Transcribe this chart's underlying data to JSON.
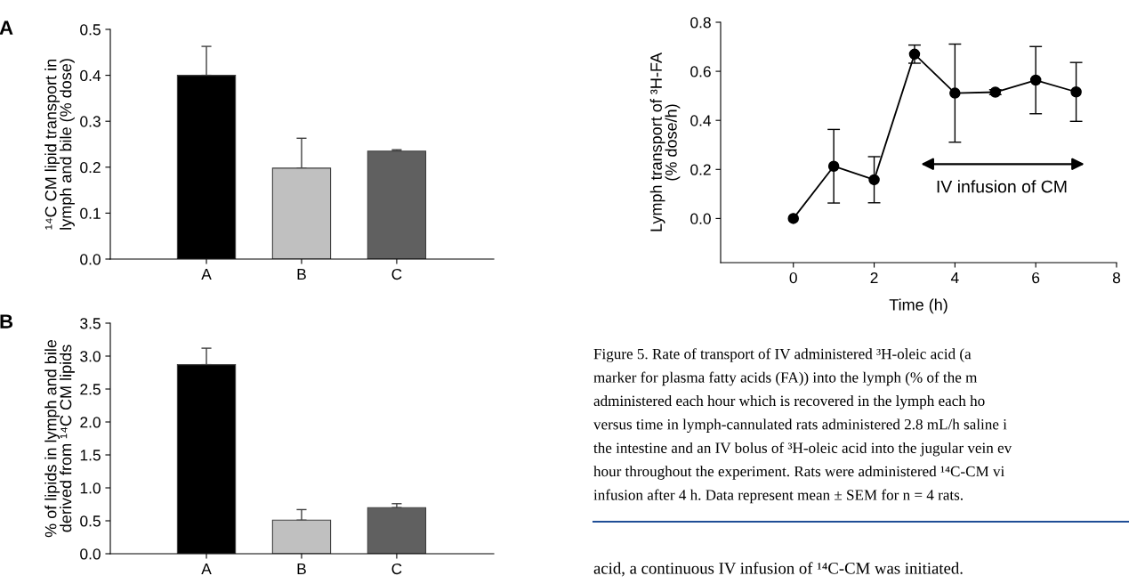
{
  "chart_data": [
    {
      "type": "bar",
      "title": "A",
      "ylabel": "¹⁴C CM lipid transport in\nlymph and bile (% dose)",
      "categories": [
        "A",
        "B",
        "C"
      ],
      "values": [
        0.4,
        0.198,
        0.235
      ],
      "errors": [
        0.063,
        0.065,
        0.003
      ],
      "colors": [
        "#000000",
        "#c0c0c0",
        "#606060"
      ],
      "ylim": [
        0,
        0.5
      ],
      "yticks": [
        {
          "value": 0,
          "label": "0.0"
        },
        0.1,
        0.2,
        0.3,
        0.4,
        0.5
      ],
      "grid": false,
      "legend": false
    },
    {
      "type": "bar",
      "title": "B",
      "ylabel": "% of lipids in lymph and bile\nderived from ¹⁴C CM lipids",
      "categories": [
        "A",
        "B",
        "C"
      ],
      "values": [
        2.87,
        0.51,
        0.7
      ],
      "errors": [
        0.25,
        0.16,
        0.06
      ],
      "colors": [
        "#000000",
        "#c0c0c0",
        "#606060"
      ],
      "ylim": [
        0,
        3.5
      ],
      "yticks": [
        {
          "value": 0,
          "label": "0.0"
        },
        0.5,
        {
          "value": 1,
          "label": "1.0"
        },
        1.5,
        {
          "value": 2,
          "label": "2.0"
        },
        2.5,
        {
          "value": 3,
          "label": "3.0"
        },
        3.5
      ],
      "grid": false,
      "legend": false
    },
    {
      "type": "line",
      "xlabel": "Time (h)",
      "ylabel": "Lymph transport of ³H-FA\n(% dose/h)",
      "x": [
        0,
        1,
        2,
        3,
        4,
        5,
        6,
        7
      ],
      "series": [
        {
          "color": "#000000",
          "values": [
            0,
            0.213,
            0.158,
            0.67,
            0.511,
            0.515,
            0.564,
            0.516
          ],
          "errors": [
            null,
            0.15,
            0.094,
            0.037,
            0.2,
            0.01,
            0.137,
            0.12
          ]
        }
      ],
      "marker": "circle",
      "line_style": "solid",
      "xlim": [
        -1.8,
        8
      ],
      "xticks": [
        0,
        2,
        4,
        6,
        8
      ],
      "ylim": [
        -0.18,
        0.8
      ],
      "yticks": [
        {
          "value": 0,
          "label": "0.0"
        },
        0.2,
        0.4,
        0.6,
        0.8
      ],
      "grid": false,
      "legend": false,
      "annotations": [
        "IV infusion of CM",
        "Figure 5. Rate of transport of IV administered ³H-oleic acid (a",
        "marker for plasma fatty acids (FA)) into the lymph (% of the m",
        "administered each hour which is recovered in the lymph each ho",
        "versus time in lymph-cannulated rats administered 2.8 mL/h saline i",
        "the intestine and an IV bolus of ³H-oleic acid into the jugular vein ev",
        "hour throughout the experiment. Rats were administered ¹⁴C-CM vi",
        "infusion after 4 h. Data represent mean ± SEM for n = 4 rats.",
        "acid, a continuous IV infusion of ¹⁴C-CM was initiated."
      ]
    }
  ]
}
